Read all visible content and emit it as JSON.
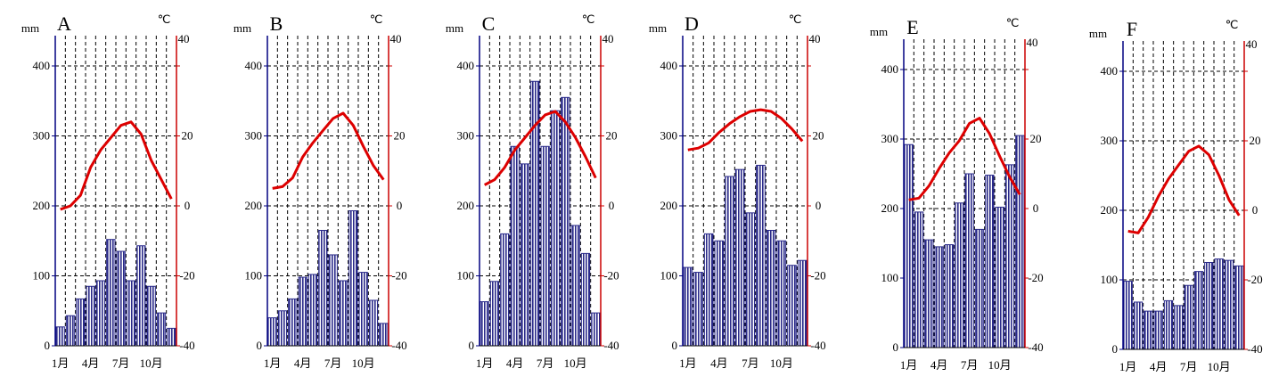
{
  "precip_unit": "mm",
  "temp_unit": "℃",
  "colors": {
    "bar_fill": "#2a2a8a",
    "bar_stripe": "#ffffff",
    "precip_axis": "#000080",
    "temp_axis": "#cc0000",
    "temp_line": "#dd0000",
    "grid": "#000000"
  },
  "chart_data": [
    {
      "type": "bar+line",
      "panel": "A",
      "x_tick_labels": [
        "1月",
        "4月",
        "7月",
        "10月"
      ],
      "precip_ticks": [
        "0",
        "100",
        "200",
        "300",
        "400"
      ],
      "temp_ticks": [
        "-40",
        "-20",
        "0",
        "20",
        "40"
      ],
      "precip_lim": [
        0,
        400
      ],
      "temp_lim": [
        -40,
        40
      ],
      "precip": [
        27,
        43,
        67,
        85,
        93,
        152,
        135,
        93,
        143,
        85,
        47,
        25
      ],
      "temp": [
        -1,
        0,
        3,
        11,
        16,
        19.5,
        23,
        24,
        20.5,
        13,
        7.5,
        2
      ]
    },
    {
      "type": "bar+line",
      "panel": "B",
      "x_tick_labels": [
        "1月",
        "4月",
        "7月",
        "10月"
      ],
      "precip_ticks": [
        "0",
        "100",
        "200",
        "300",
        "400"
      ],
      "temp_ticks": [
        "-40",
        "-20",
        "0",
        "20",
        "40"
      ],
      "precip_lim": [
        0,
        400
      ],
      "temp_lim": [
        -40,
        40
      ],
      "precip": [
        40,
        50,
        67,
        98,
        102,
        165,
        130,
        93,
        193,
        105,
        65,
        32
      ],
      "temp": [
        5,
        5.5,
        8,
        14,
        18,
        21.5,
        25,
        26.5,
        23,
        17,
        11.5,
        7.5
      ]
    },
    {
      "type": "bar+line",
      "panel": "C",
      "x_tick_labels": [
        "1月",
        "4月",
        "7月",
        "10月"
      ],
      "precip_ticks": [
        "0",
        "100",
        "200",
        "300",
        "400"
      ],
      "temp_ticks": [
        "-40",
        "-20",
        "0",
        "20",
        "40"
      ],
      "precip_lim": [
        0,
        400
      ],
      "temp_lim": [
        -40,
        40
      ],
      "precip": [
        63,
        92,
        160,
        285,
        260,
        378,
        285,
        336,
        355,
        172,
        132,
        47
      ],
      "temp": [
        6,
        7.5,
        11,
        16,
        19.5,
        23,
        26,
        27,
        24,
        19.5,
        14,
        8
      ]
    },
    {
      "type": "bar+line",
      "panel": "D",
      "x_tick_labels": [
        "1月",
        "4月",
        "7月",
        "10月"
      ],
      "precip_ticks": [
        "0",
        "100",
        "200",
        "300",
        "400"
      ],
      "temp_ticks": [
        "-40",
        "-20",
        "0",
        "20",
        "40"
      ],
      "precip": [
        112,
        105,
        160,
        150,
        242,
        252,
        190,
        258,
        165,
        150,
        115,
        122
      ],
      "precip_lim": [
        0,
        400
      ],
      "temp_lim": [
        -40,
        40
      ],
      "temp": [
        16,
        16.5,
        18,
        21,
        23.5,
        25.5,
        27,
        27.5,
        27,
        25,
        22,
        18.5
      ]
    },
    {
      "type": "bar+line",
      "panel": "E",
      "x_tick_labels": [
        "1月",
        "4月",
        "7月",
        "10月"
      ],
      "precip_ticks": [
        "0",
        "100",
        "200",
        "300",
        "400"
      ],
      "temp_ticks": [
        "-40",
        "-20",
        "0",
        "20",
        "40"
      ],
      "precip_lim": [
        0,
        400
      ],
      "temp_lim": [
        -40,
        40
      ],
      "precip": [
        292,
        195,
        155,
        145,
        148,
        208,
        250,
        170,
        248,
        202,
        263,
        305
      ],
      "temp": [
        2.5,
        3,
        6.5,
        11.5,
        16,
        19.5,
        24.5,
        26,
        21.5,
        15,
        9,
        4
      ]
    },
    {
      "type": "bar+line",
      "panel": "F",
      "x_tick_labels": [
        "1月",
        "4月",
        "7月",
        "10月"
      ],
      "precip_ticks": [
        "0",
        "100",
        "200",
        "300",
        "400"
      ],
      "temp_ticks": [
        "-40",
        "-20",
        "0",
        "20",
        "40"
      ],
      "precip_lim": [
        0,
        400
      ],
      "temp_lim": [
        -40,
        40
      ],
      "precip": [
        98,
        68,
        55,
        55,
        70,
        63,
        92,
        112,
        125,
        130,
        128,
        120
      ],
      "temp": [
        -6,
        -6.5,
        -2,
        4,
        9,
        13,
        17,
        18.5,
        16,
        10,
        3,
        -1.5
      ]
    }
  ]
}
